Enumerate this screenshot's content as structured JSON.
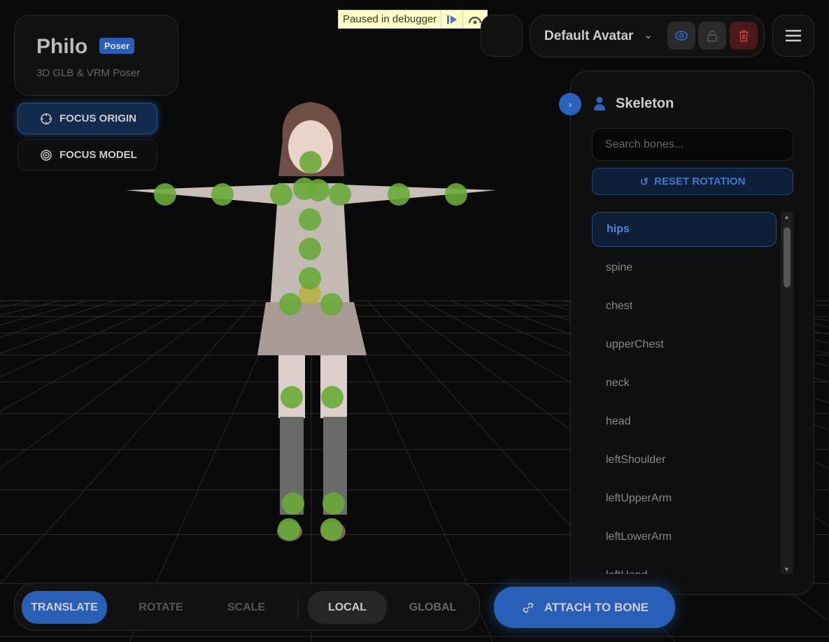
{
  "brand": {
    "title": "Philo",
    "badge": "Poser",
    "subtitle": "3D GLB & VRM Poser"
  },
  "camera": {
    "focus_origin": "FOCUS ORIGIN",
    "focus_model": "FOCUS MODEL"
  },
  "debugger": {
    "text": "Paused in debugger",
    "resume_icon": "resume-icon",
    "step_icon": "step-over-icon"
  },
  "avatar": {
    "name": "Default Avatar",
    "visible_icon": "eye-icon",
    "lock_icon": "unlock-icon",
    "delete_icon": "trash-icon"
  },
  "skeleton": {
    "title": "Skeleton",
    "search_placeholder": "Search bones...",
    "reset": "RESET ROTATION",
    "bones": [
      "hips",
      "spine",
      "chest",
      "upperChest",
      "neck",
      "head",
      "leftShoulder",
      "leftUpperArm",
      "leftLowerArm",
      "leftHand"
    ],
    "selected": "hips"
  },
  "toolbar": {
    "modes": [
      "TRANSLATE",
      "ROTATE",
      "SCALE"
    ],
    "active_mode": "TRANSLATE",
    "spaces": [
      "LOCAL",
      "GLOBAL"
    ],
    "active_space": "LOCAL",
    "attach": "ATTACH TO BONE"
  },
  "colors": {
    "accent": "#2a5fb8",
    "joint": "#6aaa3a",
    "joint_selected": "#b5b03a",
    "danger": "#e04040"
  }
}
